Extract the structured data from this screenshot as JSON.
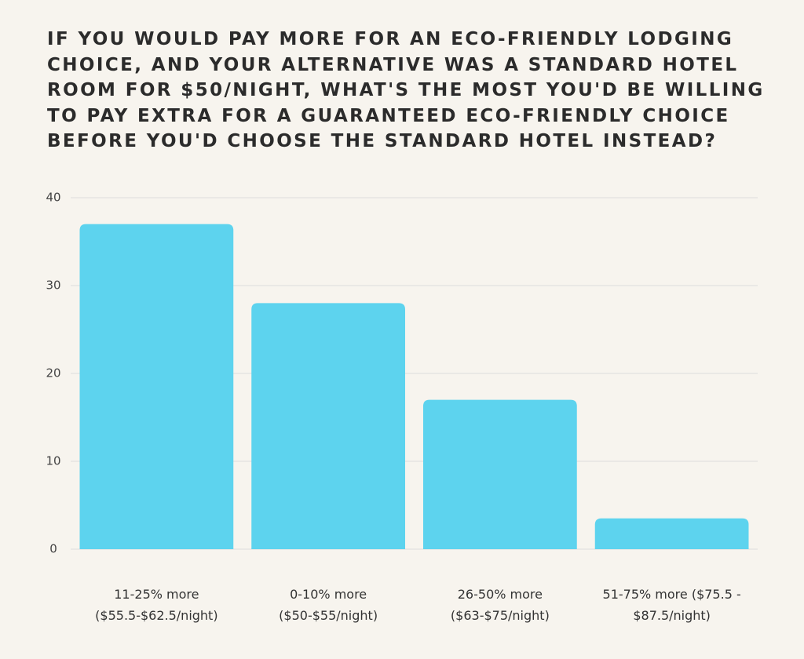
{
  "chart_data": {
    "type": "bar",
    "title": "IF YOU WOULD PAY MORE FOR AN ECO-FRIENDLY LODGING CHOICE, AND YOUR ALTERNATIVE WAS A STANDARD HOTEL ROOM FOR $50/NIGHT, WHAT'S THE MOST YOU'D BE WILLING TO PAY EXTRA FOR A GUARANTEED ECO-FRIENDLY CHOICE BEFORE YOU'D CHOOSE THE STANDARD HOTEL INSTEAD?",
    "categories": [
      "11-25% more ($55.5-$62.5/night)",
      "0-10% more ($50-$55/night)",
      "26-50% more ($63-$75/night)",
      "51-75% more ($75.5 - $87.5/night)"
    ],
    "values": [
      37,
      28,
      17,
      3.5
    ],
    "color": "#5dd3ee",
    "ylim": [
      0,
      40
    ],
    "yticks": [
      0,
      10,
      20,
      30,
      40
    ],
    "grid": true
  }
}
